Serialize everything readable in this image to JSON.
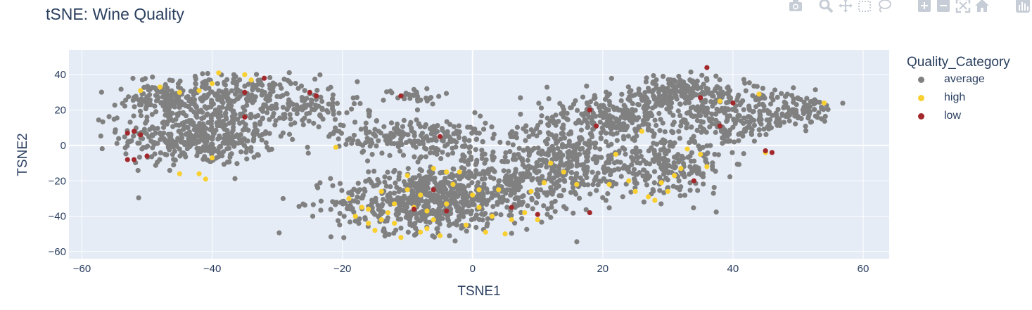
{
  "chart_data": {
    "type": "scatter",
    "title": "tSNE: Wine Quality",
    "xlabel": "TSNE1",
    "ylabel": "TSNE2",
    "xlim": [
      -62,
      64
    ],
    "ylim": [
      -64,
      54
    ],
    "xticks": [
      -60,
      -40,
      -20,
      0,
      20,
      40,
      60
    ],
    "yticks": [
      -60,
      -40,
      -20,
      0,
      20,
      40
    ],
    "grid": true,
    "legend_title": "Quality_Category",
    "legend_position": "right",
    "series": [
      {
        "name": "average",
        "color": "#808080",
        "clusters": [
          {
            "cx": -42,
            "cy": 5,
            "sx": 8,
            "sy": 11,
            "n": 420
          },
          {
            "cx": -38,
            "cy": 28,
            "sx": 9,
            "sy": 8,
            "n": 260
          },
          {
            "cx": -48,
            "cy": 25,
            "sx": 5,
            "sy": 6,
            "n": 80
          },
          {
            "cx": -26,
            "cy": 20,
            "sx": 6,
            "sy": 7,
            "n": 90
          },
          {
            "cx": -9,
            "cy": 28,
            "sx": 3,
            "sy": 3,
            "n": 30
          },
          {
            "cx": -8,
            "cy": -32,
            "sx": 9,
            "sy": 11,
            "n": 460
          },
          {
            "cx": 2,
            "cy": -22,
            "sx": 9,
            "sy": 15,
            "n": 380
          },
          {
            "cx": -9,
            "cy": 5,
            "sx": 8,
            "sy": 7,
            "n": 220
          },
          {
            "cx": 15,
            "cy": -10,
            "sx": 7,
            "sy": 13,
            "n": 280
          },
          {
            "cx": 22,
            "cy": 15,
            "sx": 9,
            "sy": 10,
            "n": 300
          },
          {
            "cx": 32,
            "cy": 30,
            "sx": 7,
            "sy": 6,
            "n": 200
          },
          {
            "cx": 30,
            "cy": -12,
            "sx": 6,
            "sy": 10,
            "n": 200
          },
          {
            "cx": 40,
            "cy": 15,
            "sx": 6,
            "sy": 10,
            "n": 200
          },
          {
            "cx": 50,
            "cy": 20,
            "sx": 4,
            "sy": 6,
            "n": 90
          }
        ]
      },
      {
        "name": "high",
        "color": "#f9d030",
        "points": [
          [
            -51,
            31
          ],
          [
            -48,
            33
          ],
          [
            -45,
            30
          ],
          [
            -42,
            31
          ],
          [
            -40,
            35
          ],
          [
            -39,
            41
          ],
          [
            -35,
            40
          ],
          [
            -34,
            37
          ],
          [
            -45,
            -16
          ],
          [
            -42,
            -16
          ],
          [
            -41,
            -19
          ],
          [
            -40,
            -7
          ],
          [
            -21,
            -1
          ],
          [
            -19,
            -30
          ],
          [
            -18,
            -40
          ],
          [
            -17,
            -35
          ],
          [
            -16,
            -44
          ],
          [
            -15,
            -48
          ],
          [
            -14,
            -26
          ],
          [
            -13,
            -38
          ],
          [
            -12,
            -44
          ],
          [
            -11,
            -52
          ],
          [
            -10,
            -25
          ],
          [
            -9,
            -35
          ],
          [
            -8,
            -28
          ],
          [
            -7,
            -47
          ],
          [
            -6,
            -42
          ],
          [
            -5,
            -51
          ],
          [
            -4,
            -33
          ],
          [
            -3,
            -22
          ],
          [
            -2,
            -15
          ],
          [
            -1,
            -45
          ],
          [
            0,
            -28
          ],
          [
            1,
            -35
          ],
          [
            2,
            -49
          ],
          [
            3,
            -40
          ],
          [
            4,
            -25
          ],
          [
            5,
            -50
          ],
          [
            6,
            -42
          ],
          [
            -6,
            -13
          ],
          [
            -4,
            -15
          ],
          [
            1,
            -25
          ],
          [
            8,
            -38
          ],
          [
            9,
            -26
          ],
          [
            10,
            -42
          ],
          [
            11,
            -21
          ],
          [
            12,
            -10
          ],
          [
            14,
            -15
          ],
          [
            16,
            -22
          ],
          [
            21,
            -22
          ],
          [
            22,
            -5
          ],
          [
            24,
            -20
          ],
          [
            25,
            -26
          ],
          [
            26,
            8
          ],
          [
            27,
            -29
          ],
          [
            28,
            -31
          ],
          [
            29,
            -21
          ],
          [
            30,
            -26
          ],
          [
            31,
            -17
          ],
          [
            32,
            -13
          ],
          [
            33,
            -2
          ],
          [
            35,
            -5
          ],
          [
            36,
            -12
          ],
          [
            38,
            25
          ],
          [
            44,
            29
          ],
          [
            45,
            -4
          ],
          [
            54,
            24
          ],
          [
            -14,
            -42
          ],
          [
            -16,
            -36
          ],
          [
            -12,
            -33
          ],
          [
            -8,
            -49
          ],
          [
            -10,
            -17
          ],
          [
            -7,
            -37
          ]
        ]
      },
      {
        "name": "low",
        "color": "#a3282b",
        "points": [
          [
            -53,
            -8
          ],
          [
            -52,
            -8
          ],
          [
            -53,
            7
          ],
          [
            -52,
            8
          ],
          [
            -51,
            6
          ],
          [
            -50,
            -6
          ],
          [
            -35,
            30
          ],
          [
            -35,
            16
          ],
          [
            -32,
            38
          ],
          [
            -25,
            30
          ],
          [
            -24,
            28
          ],
          [
            -11,
            28
          ],
          [
            -6,
            -25
          ],
          [
            -5,
            5
          ],
          [
            -4,
            -37
          ],
          [
            -9,
            -36
          ],
          [
            6,
            -35
          ],
          [
            10,
            -39
          ],
          [
            18,
            -38
          ],
          [
            18,
            20
          ],
          [
            19,
            11
          ],
          [
            35,
            27
          ],
          [
            36,
            44
          ],
          [
            38,
            11
          ],
          [
            40,
            24
          ],
          [
            45,
            -3
          ],
          [
            46,
            -4
          ],
          [
            34,
            -20
          ]
        ]
      }
    ]
  },
  "modebar": {
    "icons": [
      "camera-icon",
      "zoom-icon",
      "pan-icon",
      "box-select-icon",
      "lasso-icon",
      "zoom-in-icon",
      "zoom-out-icon",
      "autoscale-icon",
      "reset-axes-icon",
      "plotly-logo-icon"
    ]
  }
}
